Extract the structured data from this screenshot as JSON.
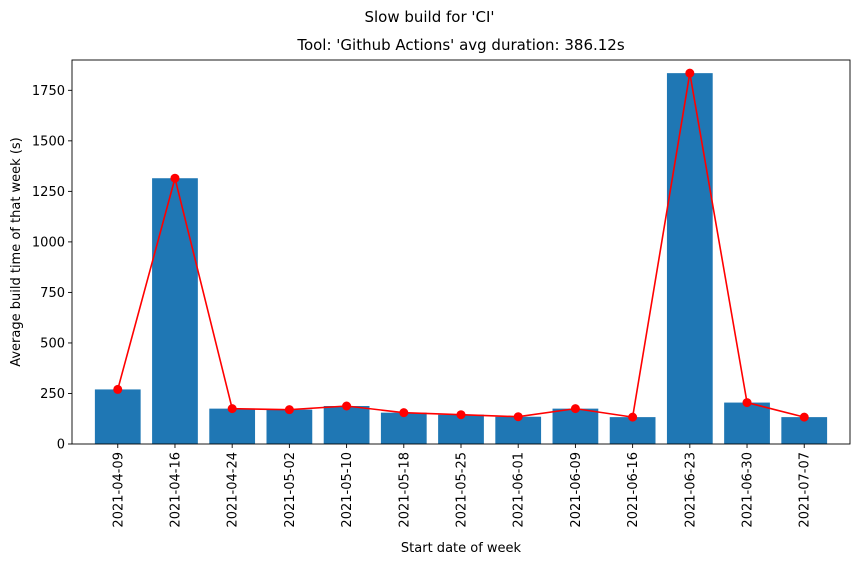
{
  "chart_data": {
    "type": "bar",
    "suptitle": "Slow build for 'CI'",
    "title": "Tool: 'Github Actions' avg duration: 386.12s",
    "xlabel": "Start date of week",
    "ylabel": "Average build time of that week (s)",
    "categories": [
      "2021-04-09",
      "2021-04-16",
      "2021-04-24",
      "2021-05-02",
      "2021-05-10",
      "2021-05-18",
      "2021-05-25",
      "2021-06-01",
      "2021-06-09",
      "2021-06-16",
      "2021-06-23",
      "2021-06-30",
      "2021-07-07"
    ],
    "series": [
      {
        "type": "bar",
        "color": "#1f77b4",
        "values": [
          270,
          1315,
          175,
          170,
          188,
          155,
          145,
          135,
          175,
          133,
          1835,
          205,
          133
        ]
      },
      {
        "type": "line",
        "color": "#ff0000",
        "marker": "circle",
        "values": [
          270,
          1315,
          175,
          170,
          188,
          155,
          145,
          135,
          175,
          133,
          1835,
          205,
          133
        ]
      }
    ],
    "ylim": [
      0,
      1900
    ],
    "yticks": [
      0,
      250,
      500,
      750,
      1000,
      1250,
      1500,
      1750
    ],
    "grid": false,
    "legend": "none"
  }
}
